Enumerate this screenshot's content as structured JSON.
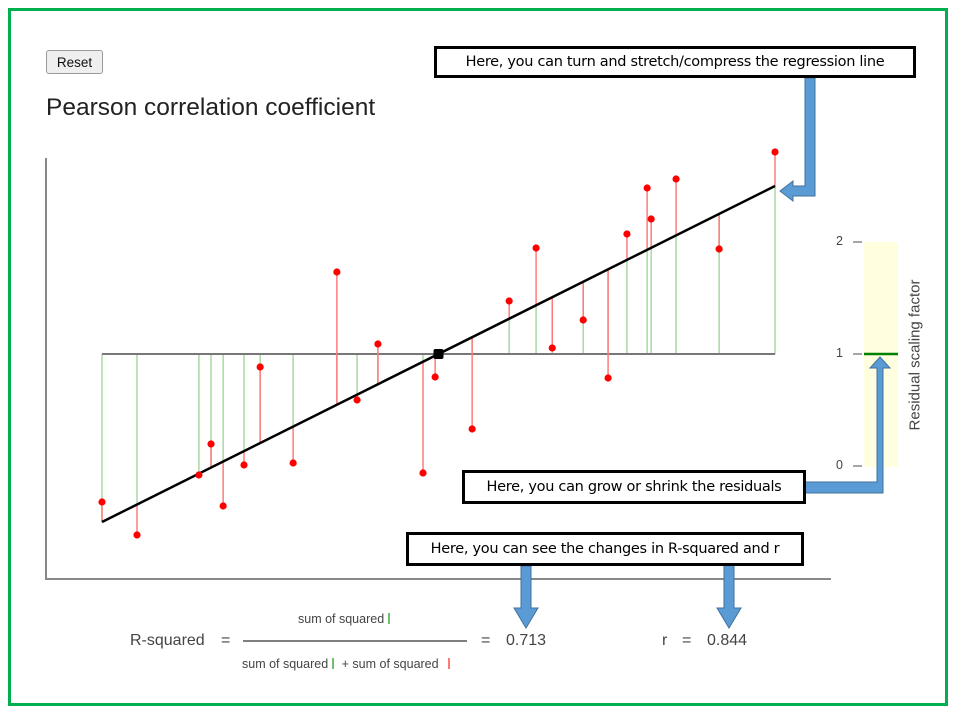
{
  "toolbar": {
    "reset_label": "Reset"
  },
  "page": {
    "title": "Pearson correlation coefficient"
  },
  "colors": {
    "frame": "#00b050",
    "point": "#ff0000",
    "residual_red": "#ff7b7b",
    "residual_green": "#a9d8a4",
    "regression_line": "#000000",
    "mean_line": "#666666",
    "slider_bg": "#ffffe0",
    "slider_handle": "#008000",
    "arrow": "#5b9bd5"
  },
  "callouts": {
    "regression": "Here, you can turn and stretch/compress the regression line",
    "residuals": "Here, you can grow or shrink the residuals",
    "metrics": "Here, you can see the changes in R-squared and r"
  },
  "slider": {
    "title": "Residual scaling factor",
    "ticks": [
      "2",
      "1",
      "0"
    ],
    "min": 0,
    "max": 2,
    "value": 1
  },
  "formula": {
    "lhs": "R-squared",
    "equals": "=",
    "numerator": "sum of squared",
    "denominator_a": "sum of squared",
    "plus": "+ sum of squared",
    "r_squared_value": "0.713",
    "r_label": "r",
    "r_value": "0.844"
  },
  "chart_data": {
    "type": "scatter",
    "title": "Pearson correlation coefficient",
    "xlabel": "",
    "ylabel": "",
    "xlim": [
      0,
      10
    ],
    "ylim": [
      -2.2,
      2.0
    ],
    "grid": false,
    "mean_y": 0,
    "centroid": {
      "x": 5.0,
      "y": 0.0
    },
    "regression_line": {
      "x0": 0,
      "y0": -1.68,
      "x1": 10,
      "y1": 1.68
    },
    "points": [
      {
        "x": 0.0,
        "y": -1.48
      },
      {
        "x": 0.52,
        "y": -1.81
      },
      {
        "x": 1.44,
        "y": -1.21
      },
      {
        "x": 1.62,
        "y": -0.9
      },
      {
        "x": 1.8,
        "y": -1.52
      },
      {
        "x": 2.11,
        "y": -1.11
      },
      {
        "x": 2.35,
        "y": -0.13
      },
      {
        "x": 2.84,
        "y": -1.09
      },
      {
        "x": 3.49,
        "y": 0.82
      },
      {
        "x": 3.79,
        "y": -0.46
      },
      {
        "x": 4.1,
        "y": 0.1
      },
      {
        "x": 4.77,
        "y": -1.19
      },
      {
        "x": 4.95,
        "y": -0.23
      },
      {
        "x": 5.5,
        "y": -0.75
      },
      {
        "x": 6.05,
        "y": 0.53
      },
      {
        "x": 6.45,
        "y": 1.06
      },
      {
        "x": 6.69,
        "y": 0.06
      },
      {
        "x": 7.15,
        "y": 0.34
      },
      {
        "x": 7.52,
        "y": -0.24
      },
      {
        "x": 7.8,
        "y": 1.2
      },
      {
        "x": 8.1,
        "y": 1.66
      },
      {
        "x": 8.16,
        "y": 1.35
      },
      {
        "x": 8.53,
        "y": 1.75
      },
      {
        "x": 9.17,
        "y": 1.05
      },
      {
        "x": 10.0,
        "y": 2.02
      }
    ],
    "r_squared": 0.713,
    "r": 0.844
  }
}
